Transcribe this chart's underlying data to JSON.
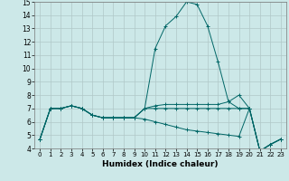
{
  "xlabel": "Humidex (Indice chaleur)",
  "bg_color": "#cce8e8",
  "grid_color": "#b0c8c8",
  "line_color": "#006666",
  "xlim": [
    -0.5,
    23.5
  ],
  "ylim": [
    4,
    15
  ],
  "xticks": [
    0,
    1,
    2,
    3,
    4,
    5,
    6,
    7,
    8,
    9,
    10,
    11,
    12,
    13,
    14,
    15,
    16,
    17,
    18,
    19,
    20,
    21,
    22,
    23
  ],
  "yticks": [
    4,
    5,
    6,
    7,
    8,
    9,
    10,
    11,
    12,
    13,
    14,
    15
  ],
  "series": [
    [
      4.7,
      7.0,
      7.0,
      7.2,
      7.0,
      6.5,
      6.3,
      6.3,
      6.3,
      6.3,
      7.0,
      11.5,
      13.2,
      13.9,
      15.0,
      14.8,
      13.2,
      10.5,
      7.5,
      7.0,
      7.0,
      3.8,
      4.3,
      4.7
    ],
    [
      4.7,
      7.0,
      7.0,
      7.2,
      7.0,
      6.5,
      6.3,
      6.3,
      6.3,
      6.3,
      7.0,
      7.2,
      7.3,
      7.3,
      7.3,
      7.3,
      7.3,
      7.3,
      7.5,
      8.0,
      7.0,
      3.8,
      4.3,
      4.7
    ],
    [
      4.7,
      7.0,
      7.0,
      7.2,
      7.0,
      6.5,
      6.3,
      6.3,
      6.3,
      6.3,
      7.0,
      7.0,
      7.0,
      7.0,
      7.0,
      7.0,
      7.0,
      7.0,
      7.0,
      7.0,
      7.0,
      3.8,
      4.3,
      4.7
    ],
    [
      4.7,
      7.0,
      7.0,
      7.2,
      7.0,
      6.5,
      6.3,
      6.3,
      6.3,
      6.3,
      6.2,
      6.0,
      5.8,
      5.6,
      5.4,
      5.3,
      5.2,
      5.1,
      5.0,
      4.9,
      7.0,
      3.8,
      4.3,
      4.7
    ]
  ]
}
